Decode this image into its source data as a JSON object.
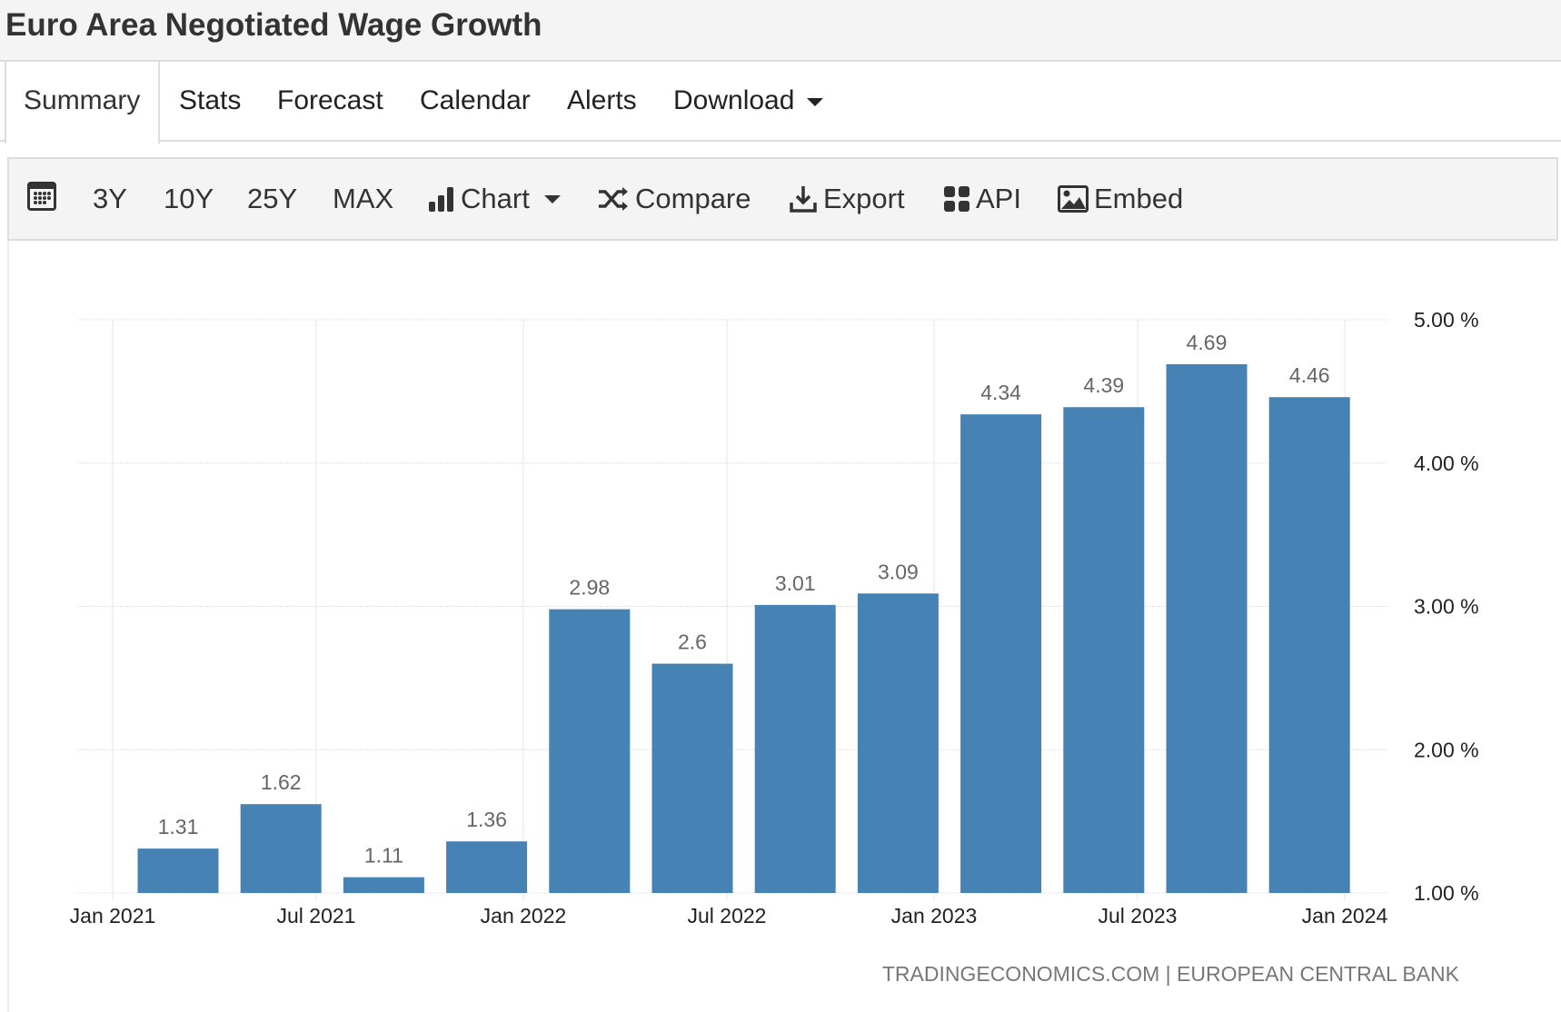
{
  "title": "Euro Area Negotiated Wage Growth",
  "tabs": [
    "Summary",
    "Stats",
    "Forecast",
    "Calendar",
    "Alerts",
    "Download"
  ],
  "toolbar": {
    "ranges": [
      "3Y",
      "10Y",
      "25Y",
      "MAX"
    ],
    "chart": "Chart",
    "compare": "Compare",
    "export": "Export",
    "api": "API",
    "embed": "Embed"
  },
  "colors": {
    "bar": "#4682b4"
  },
  "chart_data": {
    "type": "bar",
    "categories": [
      "Q1 2021",
      "Q2 2021",
      "Q3 2021",
      "Q4 2021",
      "Q1 2022",
      "Q2 2022",
      "Q3 2022",
      "Q4 2022",
      "Q1 2023",
      "Q2 2023",
      "Q3 2023",
      "Q4 2023"
    ],
    "values": [
      1.31,
      1.62,
      1.11,
      1.36,
      2.98,
      2.6,
      3.01,
      3.09,
      4.34,
      4.39,
      4.69,
      4.46
    ],
    "data_labels": [
      "1.31",
      "1.62",
      "1.11",
      "1.36",
      "2.98",
      "2.6",
      "3.01",
      "3.09",
      "4.34",
      "4.39",
      "4.69",
      "4.46"
    ],
    "x_ticks": [
      "Jan 2021",
      "Jul 2021",
      "Jan 2022",
      "Jul 2022",
      "Jan 2023",
      "Jul 2023",
      "Jan 2024"
    ],
    "y_ticks": [
      "1.00 %",
      "2.00 %",
      "3.00 %",
      "4.00 %",
      "5.00 %"
    ],
    "ylim": [
      1,
      5
    ],
    "grid": true,
    "y_axis_side": "right",
    "source": "TRADINGECONOMICS.COM | EUROPEAN CENTRAL BANK"
  }
}
